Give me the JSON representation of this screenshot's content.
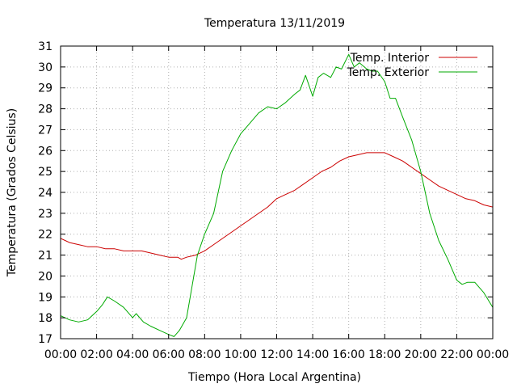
{
  "chart_data": {
    "type": "line",
    "title": "Temperatura 13/11/2019",
    "xlabel": "Tiempo (Hora Local Argentina)",
    "ylabel": "Temperatura (Grados Celsius)",
    "xlim": [
      0,
      24
    ],
    "ylim": [
      17,
      31
    ],
    "x_ticks": [
      {
        "value": 0,
        "label": "00:00"
      },
      {
        "value": 2,
        "label": "02:00"
      },
      {
        "value": 4,
        "label": "04:00"
      },
      {
        "value": 6,
        "label": "06:00"
      },
      {
        "value": 8,
        "label": "08:00"
      },
      {
        "value": 10,
        "label": "10:00"
      },
      {
        "value": 12,
        "label": "12:00"
      },
      {
        "value": 14,
        "label": "14:00"
      },
      {
        "value": 16,
        "label": "16:00"
      },
      {
        "value": 18,
        "label": "18:00"
      },
      {
        "value": 20,
        "label": "20:00"
      },
      {
        "value": 22,
        "label": "22:00"
      },
      {
        "value": 24,
        "label": "00:00"
      }
    ],
    "y_ticks": [
      17,
      18,
      19,
      20,
      21,
      22,
      23,
      24,
      25,
      26,
      27,
      28,
      29,
      30,
      31
    ],
    "grid": true,
    "legend_position": "top-right",
    "series": [
      {
        "name": "Temp. Interior",
        "color": "#cc0000",
        "x": [
          0,
          0.25,
          0.5,
          1,
          1.5,
          2,
          2.5,
          3,
          3.5,
          4,
          4.5,
          5,
          5.5,
          6,
          6.5,
          6.7,
          7,
          7.5,
          8,
          8.5,
          9,
          9.5,
          10,
          10.5,
          11,
          11.5,
          12,
          12.5,
          13,
          13.5,
          14,
          14.5,
          15,
          15.5,
          16,
          16.5,
          17,
          17.5,
          18,
          18.5,
          19,
          19.5,
          20,
          20.5,
          21,
          21.5,
          22,
          22.5,
          23,
          23.5,
          24
        ],
        "y": [
          21.8,
          21.7,
          21.6,
          21.5,
          21.4,
          21.4,
          21.3,
          21.3,
          21.2,
          21.2,
          21.2,
          21.1,
          21.0,
          20.9,
          20.9,
          20.8,
          20.9,
          21.0,
          21.2,
          21.5,
          21.8,
          22.1,
          22.4,
          22.7,
          23.0,
          23.3,
          23.7,
          23.9,
          24.1,
          24.4,
          24.7,
          25.0,
          25.2,
          25.5,
          25.7,
          25.8,
          25.9,
          25.9,
          25.9,
          25.7,
          25.5,
          25.2,
          24.9,
          24.6,
          24.3,
          24.1,
          23.9,
          23.7,
          23.6,
          23.4,
          23.3
        ]
      },
      {
        "name": "Temp. Exterior",
        "color": "#00aa00",
        "x": [
          0,
          0.5,
          1,
          1.5,
          2,
          2.3,
          2.6,
          3,
          3.5,
          4,
          4.2,
          4.6,
          5,
          5.5,
          6,
          6.3,
          6.6,
          7,
          7.3,
          7.6,
          8,
          8.5,
          9,
          9.5,
          10,
          10.5,
          11,
          11.5,
          12,
          12.5,
          13,
          13.3,
          13.6,
          14,
          14.3,
          14.6,
          15,
          15.3,
          15.6,
          16,
          16.3,
          16.6,
          17,
          17.3,
          17.6,
          18,
          18.3,
          18.6,
          19,
          19.5,
          20,
          20.5,
          21,
          21.5,
          22,
          22.3,
          22.6,
          23,
          23.5,
          24
        ],
        "y": [
          18.1,
          17.9,
          17.8,
          17.9,
          18.3,
          18.6,
          19.0,
          18.8,
          18.5,
          18.0,
          18.2,
          17.8,
          17.6,
          17.4,
          17.2,
          17.1,
          17.4,
          18.0,
          19.5,
          21.0,
          22.0,
          23.0,
          25.0,
          26.0,
          26.8,
          27.3,
          27.8,
          28.1,
          28.0,
          28.3,
          28.7,
          28.9,
          29.6,
          28.6,
          29.5,
          29.7,
          29.5,
          30.0,
          29.9,
          30.6,
          30.0,
          30.2,
          29.9,
          29.8,
          29.8,
          29.3,
          28.5,
          28.5,
          27.6,
          26.5,
          25.0,
          23.0,
          21.7,
          20.8,
          19.8,
          19.6,
          19.7,
          19.7,
          19.2,
          18.5
        ]
      }
    ]
  }
}
